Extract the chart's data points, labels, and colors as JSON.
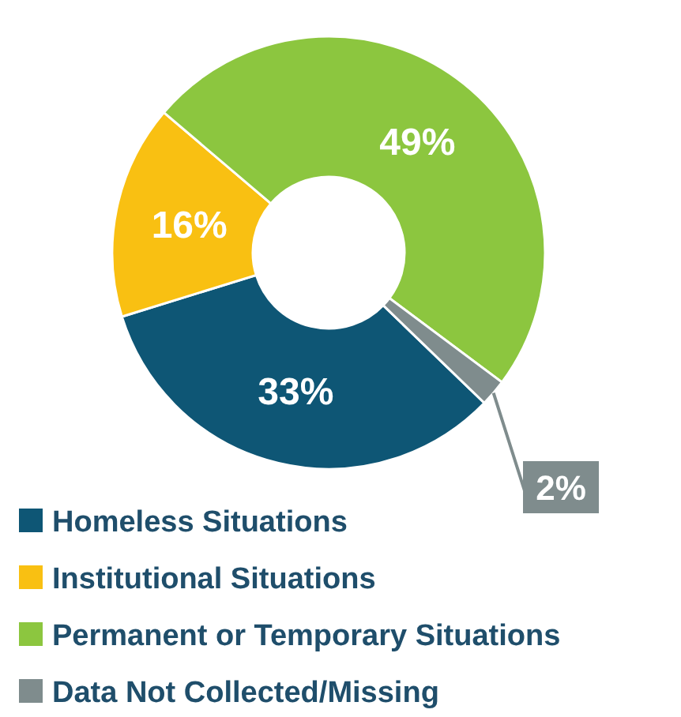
{
  "chart_data": {
    "type": "donut",
    "categories": [
      "Homeless Situations",
      "Institutional Situations",
      "Permanent or Temporary Situations",
      "Data Not Collected/Missing"
    ],
    "values": [
      33,
      16,
      49,
      2
    ],
    "colors": [
      "#0e5675",
      "#f9c012",
      "#8cc63f",
      "#7f8c8d"
    ],
    "value_labels": [
      "33%",
      "16%",
      "49%",
      "2%"
    ],
    "legend": "bottom"
  }
}
